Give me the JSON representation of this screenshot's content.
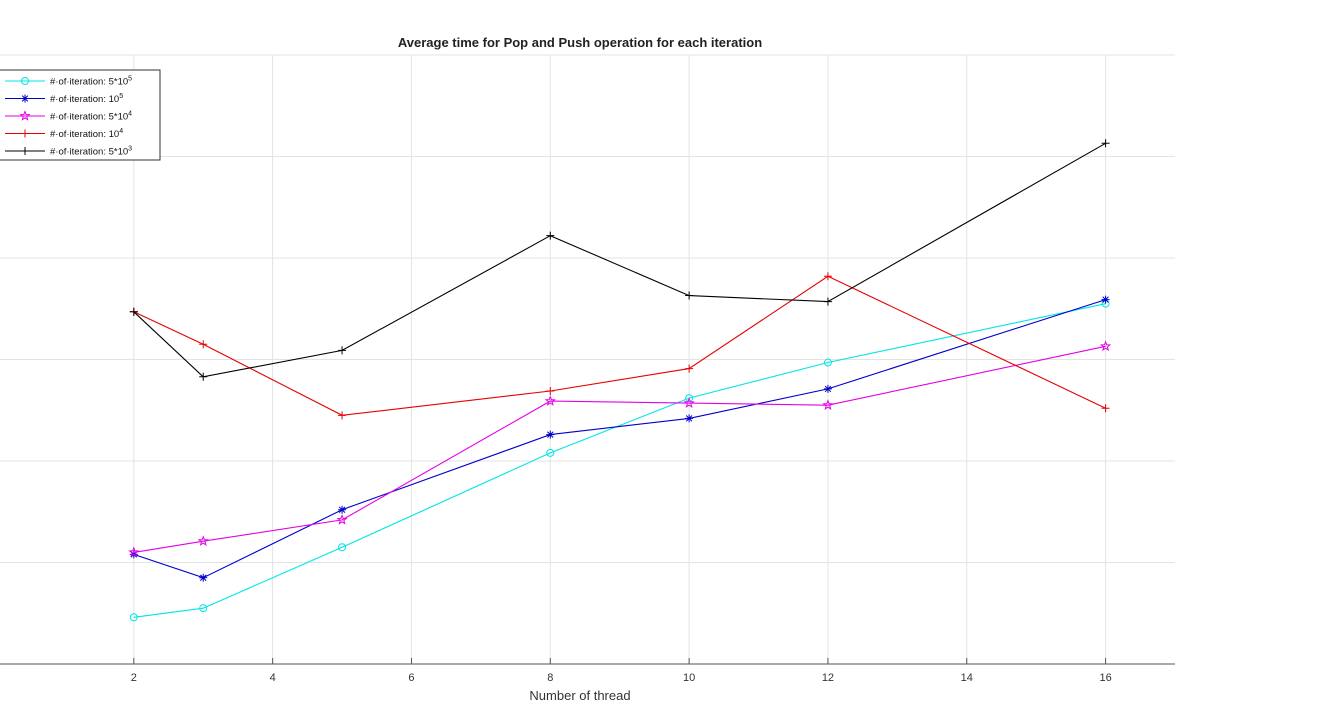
{
  "chart_data": {
    "type": "line",
    "title": "Average time for Pop and Push operation for each iteration",
    "xlabel": "Number of thread",
    "ylabel": "",
    "x": [
      2,
      3,
      5,
      8,
      10,
      12,
      16
    ],
    "xlim": [
      0,
      17
    ],
    "ylim": [
      0,
      6
    ],
    "xticks": [
      2,
      4,
      6,
      8,
      10,
      12,
      14,
      16
    ],
    "grid": true,
    "legend_position": "top-left",
    "series": [
      {
        "name": "#·of·iteration: 5*10",
        "sup": "5",
        "color": "#00e5e5",
        "marker": "circle",
        "values": [
          0.46,
          0.55,
          1.15,
          2.08,
          2.62,
          2.97,
          3.55
        ]
      },
      {
        "name": "#·of·iteration: 10",
        "sup": "5",
        "color": "#0000cc",
        "marker": "asterisk",
        "values": [
          1.08,
          0.85,
          1.52,
          2.26,
          2.42,
          2.71,
          3.59
        ]
      },
      {
        "name": "#·of·iteration: 5*10",
        "sup": "4",
        "color": "#e600e6",
        "marker": "star",
        "values": [
          1.1,
          1.21,
          1.42,
          2.59,
          2.57,
          2.55,
          3.13
        ]
      },
      {
        "name": "#·of·iteration: 10",
        "sup": "4",
        "color": "#e60000",
        "marker": "plus",
        "values": [
          3.47,
          3.15,
          2.45,
          2.69,
          2.91,
          3.82,
          2.52
        ]
      },
      {
        "name": "#·of·iteration: 5*10",
        "sup": "3",
        "color": "#000000",
        "marker": "plus",
        "values": [
          3.47,
          2.83,
          3.09,
          4.22,
          3.63,
          3.57,
          5.13
        ]
      }
    ]
  }
}
